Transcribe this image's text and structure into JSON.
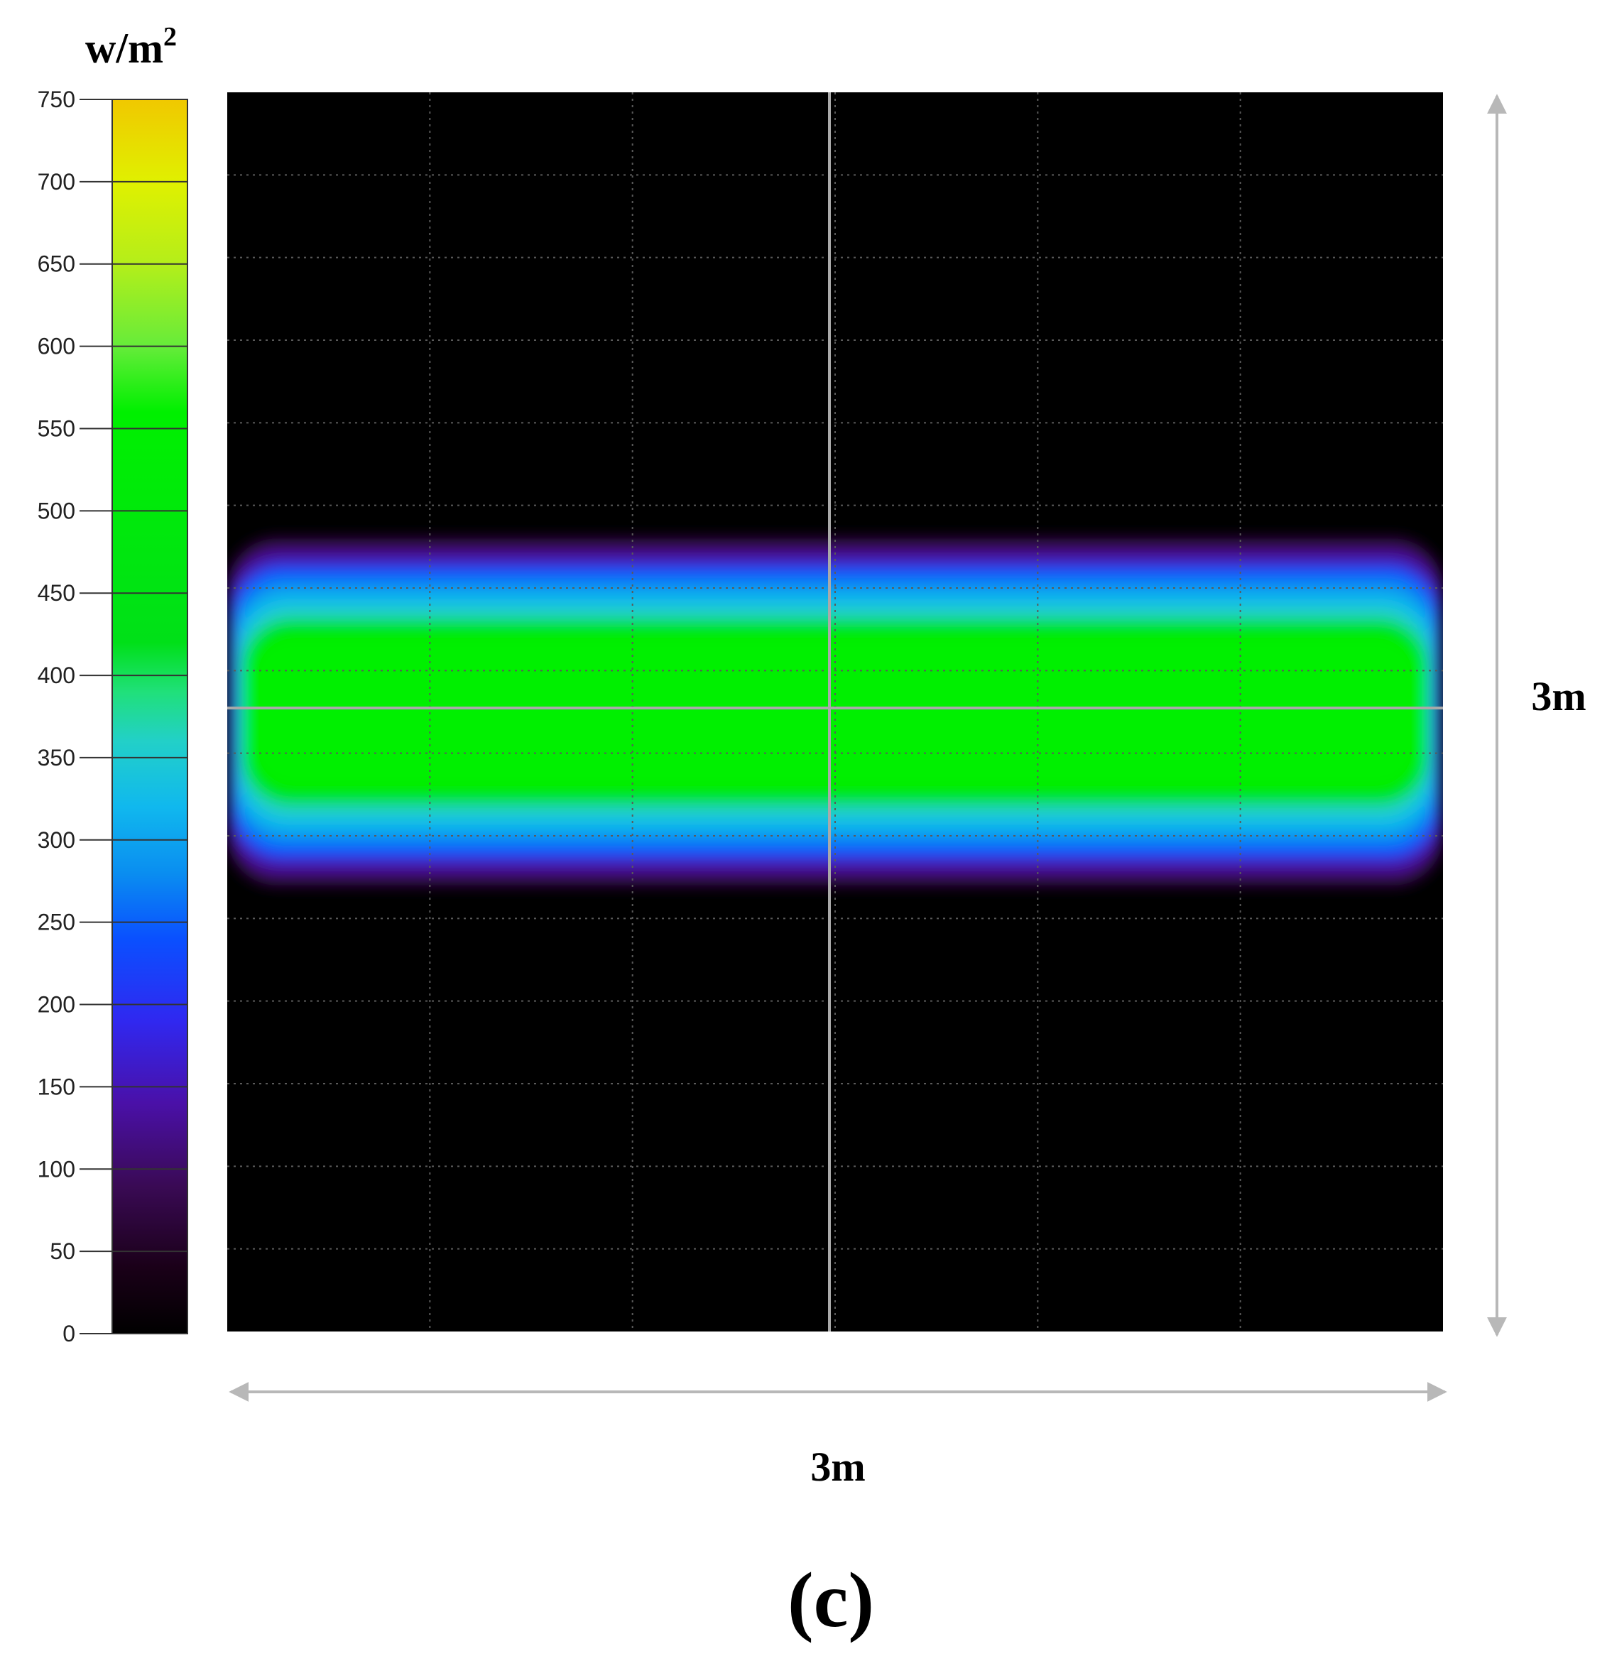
{
  "chart_data": {
    "type": "heatmap",
    "colorbar": {
      "unit_base": "w/m",
      "unit_exponent": "2",
      "range": [
        0,
        750
      ],
      "ticks": [
        0,
        50,
        100,
        150,
        200,
        250,
        300,
        350,
        400,
        450,
        500,
        550,
        600,
        650,
        700,
        750
      ],
      "tick_labels": [
        "0",
        "50",
        "100",
        "150",
        "200",
        "250",
        "300",
        "350",
        "400",
        "450",
        "500",
        "550",
        "600",
        "650",
        "700",
        "750"
      ],
      "color_stops": [
        {
          "value": 0,
          "color": "#000000"
        },
        {
          "value": 40,
          "color": "#1a0018"
        },
        {
          "value": 90,
          "color": "#3a0a55"
        },
        {
          "value": 140,
          "color": "#4a10a8"
        },
        {
          "value": 190,
          "color": "#3028f0"
        },
        {
          "value": 240,
          "color": "#0a50ff"
        },
        {
          "value": 280,
          "color": "#0a8ef0"
        },
        {
          "value": 320,
          "color": "#10b8ee"
        },
        {
          "value": 360,
          "color": "#22d0c8"
        },
        {
          "value": 390,
          "color": "#20e07a"
        },
        {
          "value": 420,
          "color": "#00e018"
        },
        {
          "value": 560,
          "color": "#00f000"
        },
        {
          "value": 600,
          "color": "#66ec3a"
        },
        {
          "value": 650,
          "color": "#b4ee1a"
        },
        {
          "value": 700,
          "color": "#e0f000"
        },
        {
          "value": 750,
          "color": "#f0c800"
        }
      ]
    },
    "map": {
      "background": "#000000",
      "peak_value": 560,
      "band_extent_fraction": {
        "x": [
          0.0,
          1.0
        ],
        "y": [
          0.36,
          0.64
        ]
      },
      "width_label": "3m",
      "height_label": "3m",
      "grid": true
    },
    "panel_label": "(c)"
  }
}
